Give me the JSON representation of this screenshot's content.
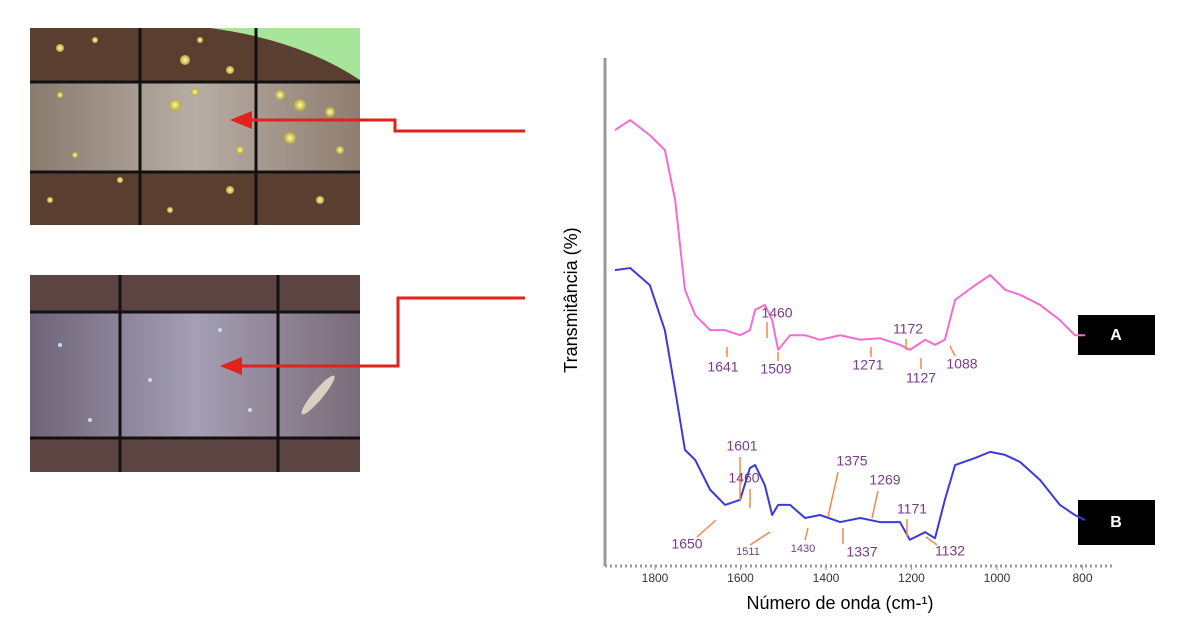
{
  "chart_data": {
    "type": "line",
    "xlabel": "Número de onda (cm-¹)",
    "ylabel": "Transmitância (%)",
    "x": [
      1894,
      1858,
      1812,
      1777,
      1753,
      1730,
      1706,
      1671,
      1636,
      1601,
      1578,
      1566,
      1543,
      1526,
      1512,
      1484,
      1449,
      1414,
      1367,
      1320,
      1274,
      1227,
      1204,
      1168,
      1145,
      1122,
      1098,
      1051,
      1016,
      981,
      946,
      899,
      853,
      818,
      794
    ],
    "series": [
      {
        "name": "A",
        "color": "#f06ed2",
        "values": [
          86.1,
          88.1,
          85.1,
          82.2,
          72.3,
          54.5,
          49.5,
          46.5,
          46.5,
          45.5,
          46.5,
          50.5,
          51.5,
          48.5,
          42.6,
          45.5,
          45.5,
          44.6,
          45.5,
          44.6,
          44.9,
          43.6,
          42.6,
          44.6,
          43.6,
          44.6,
          52.5,
          55.4,
          57.4,
          54.5,
          53.5,
          51.5,
          48.5,
          45.5,
          45.5
        ],
        "peak_labels": [
          "1460",
          "1641",
          "1509",
          "1271",
          "1172",
          "1127",
          "1088"
        ]
      },
      {
        "name": "B",
        "color": "#3b3bdc",
        "values": [
          58.4,
          58.8,
          55.4,
          46.5,
          34.7,
          22.8,
          20.8,
          14.9,
          11.9,
          12.9,
          19.2,
          19.8,
          15.8,
          9.9,
          11.9,
          11.9,
          9.3,
          9.9,
          8.5,
          9.3,
          8.5,
          8.5,
          5.0,
          6.5,
          5.3,
          12.9,
          19.8,
          21.2,
          22.4,
          21.8,
          20.4,
          16.8,
          11.9,
          9.9,
          8.9
        ],
        "peak_labels": [
          "1601",
          "1375",
          "1460",
          "1269",
          "1171",
          "1650",
          "1511",
          "1430",
          "1337",
          "1132"
        ]
      }
    ],
    "xlim": [
      1917,
      724
    ],
    "ylim": [
      0,
      100
    ],
    "xticks": [
      1800,
      1600,
      1400,
      1200,
      1000,
      800
    ]
  }
}
